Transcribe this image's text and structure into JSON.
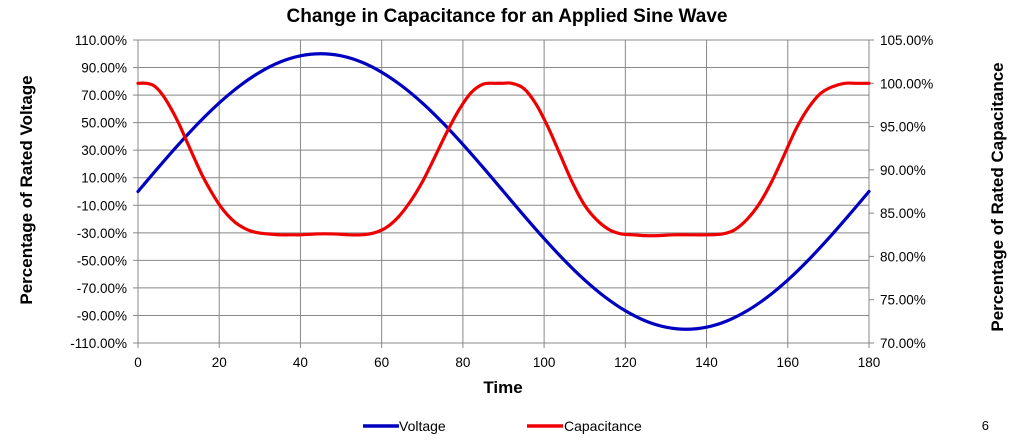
{
  "chart_data": {
    "type": "line",
    "title": "Change in Capacitance for an Applied Sine Wave",
    "xlabel": "Time",
    "ylabel": "Percentage of Rated Voltage",
    "y2label": "Percentage of Rated Capacitance",
    "xlim": [
      0,
      180
    ],
    "ylim": [
      -110,
      110
    ],
    "y2lim": [
      70,
      105
    ],
    "xticks": [
      0,
      20,
      40,
      60,
      80,
      100,
      120,
      140,
      160,
      180
    ],
    "yticks": [
      "110.00%",
      "90.00%",
      "70.00%",
      "50.00%",
      "30.00%",
      "10.00%",
      "-10.00%",
      "-30.00%",
      "-50.00%",
      "-70.00%",
      "-90.00%",
      "-110.00%"
    ],
    "y2ticks": [
      "105.00%",
      "100.00%",
      "95.00%",
      "90.00%",
      "85.00%",
      "80.00%",
      "75.00%",
      "70.00%"
    ],
    "grid": true,
    "legend": "bottom",
    "series": [
      {
        "name": "Voltage",
        "axis": "left",
        "color": "#0000C0",
        "x": [
          0,
          5,
          10,
          15,
          20,
          25,
          30,
          35,
          40,
          45,
          50,
          55,
          60,
          65,
          70,
          75,
          80,
          85,
          90,
          95,
          100,
          105,
          110,
          115,
          120,
          125,
          130,
          135,
          140,
          145,
          150,
          155,
          160,
          165,
          170,
          175,
          180
        ],
        "y": [
          0,
          17.4,
          34.2,
          50,
          64.3,
          76.6,
          86.6,
          94,
          98.5,
          100,
          98.5,
          94,
          86.6,
          76.6,
          64.3,
          50,
          34.2,
          17.4,
          0,
          -17.4,
          -34.2,
          -50,
          -64.3,
          -76.6,
          -86.6,
          -94,
          -98.5,
          -100,
          -98.5,
          -94,
          -86.6,
          -76.6,
          -64.3,
          -50,
          -34.2,
          -17.4,
          0
        ]
      },
      {
        "name": "Capacitance",
        "axis": "right",
        "color": "#EE0000",
        "x": [
          0,
          2,
          4,
          6,
          8,
          10,
          12,
          14,
          16,
          18,
          20,
          22,
          24,
          26,
          28,
          30,
          32,
          35,
          38,
          40,
          44,
          48,
          52,
          55,
          58,
          61,
          64,
          67,
          70,
          73,
          76,
          79,
          82,
          85,
          88,
          90,
          92,
          95,
          98,
          101,
          104,
          107,
          110,
          113,
          116,
          119,
          122,
          125,
          128,
          132,
          136,
          140,
          144,
          147,
          150,
          153,
          156,
          159,
          162,
          165,
          168,
          171,
          174,
          177,
          180
        ],
        "y": [
          100,
          100,
          99.7,
          98.7,
          97.2,
          95.4,
          93.3,
          91.2,
          89.2,
          87.5,
          86,
          84.8,
          83.9,
          83.3,
          82.9,
          82.7,
          82.6,
          82.5,
          82.5,
          82.5,
          82.6,
          82.6,
          82.5,
          82.5,
          82.7,
          83.3,
          84.5,
          86.3,
          88.6,
          91.4,
          94.3,
          96.9,
          98.9,
          99.9,
          100,
          100,
          100,
          99.4,
          97.6,
          94.9,
          91.7,
          88.5,
          85.9,
          84.2,
          83.1,
          82.6,
          82.5,
          82.4,
          82.4,
          82.5,
          82.5,
          82.5,
          82.6,
          83.1,
          84.3,
          86.1,
          88.6,
          91.6,
          94.7,
          97.1,
          98.8,
          99.6,
          100,
          100,
          100
        ]
      }
    ]
  },
  "page_number": "6"
}
